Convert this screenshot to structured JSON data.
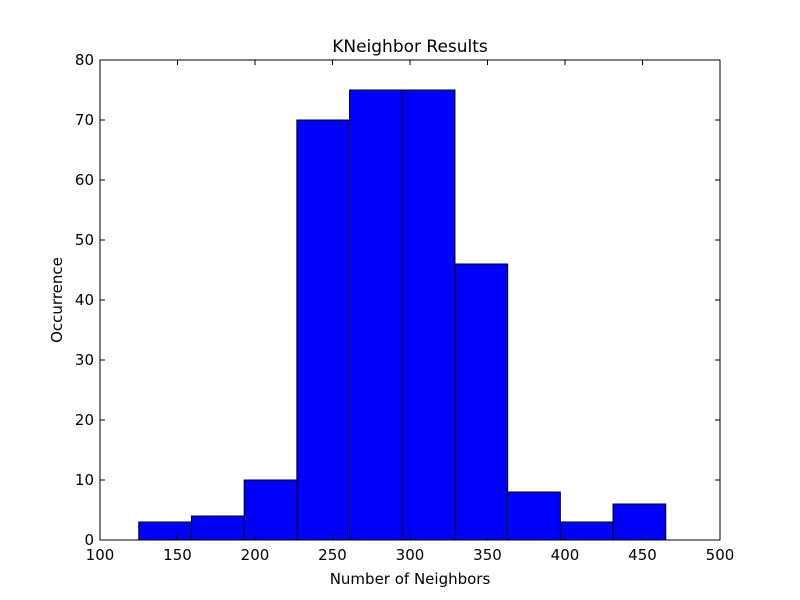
{
  "chart_data": {
    "type": "bar",
    "title": "KNeighbor Results",
    "xlabel": "Number of Neighbors",
    "ylabel": "Occurrence",
    "xlim": [
      100,
      500
    ],
    "ylim": [
      0,
      80
    ],
    "xticks": [
      100,
      150,
      200,
      250,
      300,
      350,
      400,
      450,
      500
    ],
    "yticks": [
      0,
      10,
      20,
      30,
      40,
      50,
      60,
      70,
      80
    ],
    "grid": false,
    "bar_color": "#0000ff",
    "bins": [
      {
        "x0": 125,
        "x1": 159,
        "count": 3
      },
      {
        "x0": 159,
        "x1": 193,
        "count": 4
      },
      {
        "x0": 193,
        "x1": 227,
        "count": 10
      },
      {
        "x0": 227,
        "x1": 261,
        "count": 70
      },
      {
        "x0": 261,
        "x1": 295,
        "count": 75
      },
      {
        "x0": 295,
        "x1": 329,
        "count": 75
      },
      {
        "x0": 329,
        "x1": 363,
        "count": 46
      },
      {
        "x0": 363,
        "x1": 397,
        "count": 8
      },
      {
        "x0": 397,
        "x1": 431,
        "count": 3
      },
      {
        "x0": 431,
        "x1": 465,
        "count": 6
      }
    ]
  }
}
